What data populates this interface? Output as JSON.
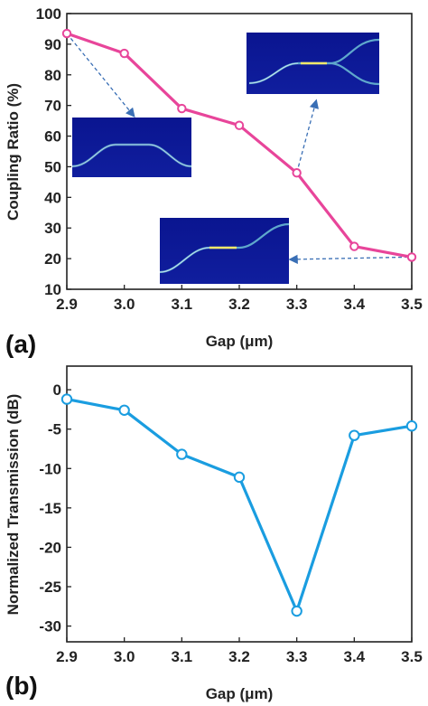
{
  "chart_data": [
    {
      "type": "line",
      "panel_label": "(a)",
      "xlabel": "Gap (μm)",
      "ylabel": "Coupling Ratio (%)",
      "xlim": [
        2.9,
        3.5
      ],
      "ylim": [
        10,
        100
      ],
      "xticks": [
        "2.9",
        "3.0",
        "3.1",
        "3.2",
        "3.3",
        "3.4",
        "3.5"
      ],
      "yticks": [
        "10",
        "20",
        "30",
        "40",
        "50",
        "60",
        "70",
        "80",
        "90",
        "100"
      ],
      "x": [
        2.9,
        3.0,
        3.1,
        3.2,
        3.3,
        3.4,
        3.5
      ],
      "series": [
        {
          "values": [
            93.5,
            87,
            69,
            63.5,
            48,
            24,
            20.5
          ],
          "color": "#e8459a"
        }
      ],
      "grid": false,
      "insets": [
        {
          "shows": "field-propagation",
          "points_to": {
            "x": 2.9,
            "y": 93.5
          }
        },
        {
          "shows": "field-propagation",
          "points_to": {
            "x": 3.3,
            "y": 48
          }
        },
        {
          "shows": "field-propagation",
          "points_to": {
            "x": 3.5,
            "y": 20.5
          }
        }
      ]
    },
    {
      "type": "line",
      "panel_label": "(b)",
      "xlabel": "Gap (μm)",
      "ylabel": "Normalized Transmission (dB)",
      "xlim": [
        2.9,
        3.5
      ],
      "ylim": [
        -32,
        3
      ],
      "xticks": [
        "2.9",
        "3.0",
        "3.1",
        "3.2",
        "3.3",
        "3.4",
        "3.5"
      ],
      "yticks": [
        "0",
        "-5",
        "-10",
        "-15",
        "-20",
        "-25",
        "-30"
      ],
      "x": [
        2.9,
        3.0,
        3.1,
        3.2,
        3.3,
        3.4,
        3.5
      ],
      "series": [
        {
          "values": [
            -1.2,
            -2.6,
            -8.2,
            -11.1,
            -28.1,
            -5.8,
            -4.6
          ],
          "color": "#1a9de0"
        }
      ],
      "grid": false
    }
  ]
}
